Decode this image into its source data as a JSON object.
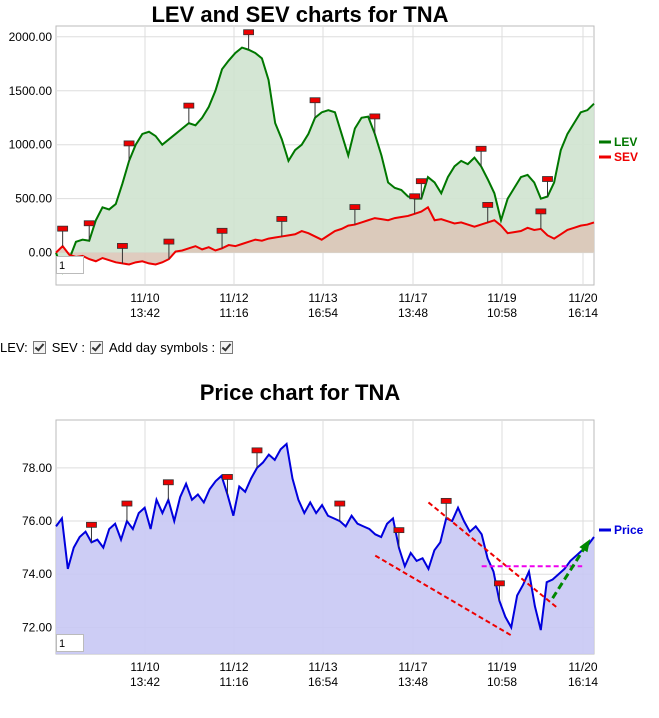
{
  "chart_data": [
    {
      "type": "area",
      "title": "LEV and SEV charts for TNA",
      "ylim": [
        -300,
        2100
      ],
      "yticks": [
        "2000.00",
        "1500.00",
        "1000.00",
        "500.00",
        "0.00"
      ],
      "ytick_values": [
        2000,
        1500,
        1000,
        500,
        0
      ],
      "xticks": [
        {
          "date": "11/10",
          "time": "13:42"
        },
        {
          "date": "11/12",
          "time": "11:16"
        },
        {
          "date": "11/13",
          "time": "16:54"
        },
        {
          "date": "11/17",
          "time": "13:48"
        },
        {
          "date": "11/19",
          "time": "10:58"
        },
        {
          "date": "11/20",
          "time": "16:14"
        }
      ],
      "legend_position": "right",
      "series": [
        {
          "name": "LEV",
          "color": "#007700",
          "fill": "#cfe3cf",
          "values": [
            0,
            -180,
            -60,
            100,
            120,
            110,
            300,
            420,
            400,
            450,
            640,
            850,
            1000,
            1100,
            1120,
            1080,
            1000,
            1050,
            1100,
            1150,
            1200,
            1180,
            1250,
            1350,
            1500,
            1700,
            1780,
            1850,
            1900,
            1880,
            1850,
            1800,
            1600,
            1200,
            1050,
            850,
            950,
            1000,
            1100,
            1250,
            1300,
            1320,
            1300,
            1100,
            900,
            1150,
            1250,
            1260,
            1100,
            900,
            650,
            600,
            580,
            520,
            500,
            500,
            700,
            650,
            550,
            700,
            800,
            850,
            820,
            880,
            800,
            680,
            550,
            300,
            500,
            600,
            700,
            720,
            650,
            500,
            520,
            650,
            950,
            1100,
            1200,
            1300,
            1320,
            1380
          ]
        },
        {
          "name": "SEV",
          "color": "#ee0000",
          "fill": "#dcc7b8",
          "values": [
            0,
            60,
            -20,
            -40,
            -30,
            -60,
            -80,
            -50,
            -70,
            -90,
            -100,
            -110,
            -90,
            -80,
            -100,
            -110,
            -90,
            -60,
            10,
            20,
            40,
            60,
            30,
            50,
            20,
            40,
            70,
            60,
            80,
            100,
            120,
            110,
            130,
            140,
            150,
            160,
            170,
            200,
            180,
            150,
            120,
            160,
            200,
            220,
            250,
            260,
            280,
            300,
            320,
            310,
            300,
            320,
            330,
            340,
            360,
            380,
            420,
            300,
            310,
            290,
            270,
            280,
            260,
            240,
            260,
            280,
            300,
            250,
            180,
            190,
            200,
            230,
            210,
            220,
            160,
            130,
            170,
            210,
            230,
            250,
            260,
            280
          ]
        }
      ],
      "markers": [
        {
          "series": "SEV",
          "index": 1
        },
        {
          "series": "LEV",
          "index": 5
        },
        {
          "series": "SEV",
          "index": 10
        },
        {
          "series": "LEV",
          "index": 11
        },
        {
          "series": "SEV",
          "index": 17
        },
        {
          "series": "LEV",
          "index": 20
        },
        {
          "series": "SEV",
          "index": 25
        },
        {
          "series": "LEV",
          "index": 29
        },
        {
          "series": "SEV",
          "index": 34
        },
        {
          "series": "LEV",
          "index": 39
        },
        {
          "series": "SEV",
          "index": 45
        },
        {
          "series": "LEV",
          "index": 48
        },
        {
          "series": "SEV",
          "index": 54
        },
        {
          "series": "LEV",
          "index": 55
        },
        {
          "series": "LEV",
          "index": 64
        },
        {
          "series": "SEV",
          "index": 65
        },
        {
          "series": "SEV",
          "index": 73
        },
        {
          "series": "LEV",
          "index": 74
        }
      ]
    },
    {
      "type": "area",
      "title": "Price chart for TNA",
      "ylim": [
        71.0,
        79.8
      ],
      "yticks": [
        "78.00",
        "76.00",
        "74.00",
        "72.00"
      ],
      "ytick_values": [
        78,
        76,
        74,
        72
      ],
      "xticks": [
        {
          "date": "11/10",
          "time": "13:42"
        },
        {
          "date": "11/12",
          "time": "11:16"
        },
        {
          "date": "11/13",
          "time": "16:54"
        },
        {
          "date": "11/17",
          "time": "13:48"
        },
        {
          "date": "11/19",
          "time": "10:58"
        },
        {
          "date": "11/20",
          "time": "16:14"
        }
      ],
      "legend_position": "right",
      "series": [
        {
          "name": "Price",
          "color": "#0000dd",
          "fill": "#c8c8f4",
          "values": [
            75.8,
            76.1,
            74.2,
            75.0,
            75.4,
            75.6,
            75.2,
            75.3,
            75.0,
            75.7,
            75.9,
            75.3,
            76.0,
            75.7,
            76.3,
            76.5,
            75.7,
            76.8,
            76.3,
            76.8,
            76.0,
            76.9,
            77.4,
            76.8,
            77.0,
            76.7,
            77.2,
            77.5,
            77.7,
            77.0,
            76.2,
            77.3,
            77.1,
            77.6,
            78.0,
            78.2,
            78.5,
            78.3,
            78.7,
            78.9,
            77.6,
            76.8,
            76.3,
            76.7,
            76.3,
            76.6,
            76.2,
            76.1,
            76.0,
            75.8,
            76.2,
            75.9,
            75.8,
            75.7,
            75.5,
            75.4,
            75.9,
            76.1,
            75.0,
            74.3,
            74.8,
            74.5,
            74.6,
            74.2,
            74.9,
            75.2,
            76.1,
            76.0,
            76.5,
            76.0,
            75.6,
            75.8,
            75.5,
            74.6,
            74.1,
            73.0,
            72.4,
            72.0,
            73.2,
            73.6,
            74.1,
            72.8,
            71.9,
            73.7,
            73.8,
            74.0,
            74.2,
            74.5,
            74.7,
            74.9,
            75.1,
            75.4
          ]
        }
      ],
      "markers": [
        6,
        12,
        19,
        29,
        34,
        48,
        58,
        66,
        75
      ],
      "trendlines": [
        {
          "color": "#ee0000",
          "dashed": true,
          "from": [
            54,
            74.7
          ],
          "to": [
            77,
            71.7
          ]
        },
        {
          "color": "#ee0000",
          "dashed": true,
          "from": [
            63,
            76.7
          ],
          "to": [
            85,
            72.7
          ]
        },
        {
          "color": "#ee00ee",
          "dashed": true,
          "from": [
            72,
            74.3
          ],
          "to": [
            89,
            74.3
          ]
        },
        {
          "color": "#008800",
          "dashed": true,
          "arrow": true,
          "from": [
            84,
            73.1
          ],
          "to": [
            90,
            75.2
          ]
        }
      ]
    }
  ],
  "controls": {
    "lev_label": "LEV:",
    "sev_label": "SEV :",
    "daysym_label": "Add day symbols :"
  },
  "box_values": [
    "1",
    "1"
  ]
}
